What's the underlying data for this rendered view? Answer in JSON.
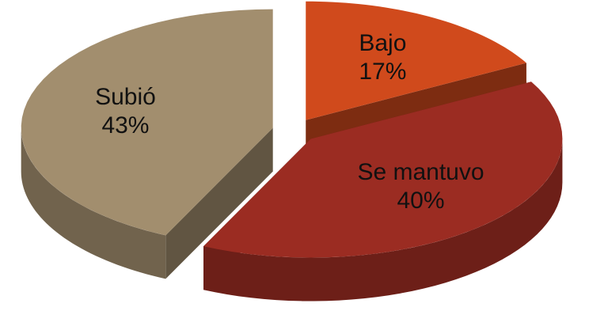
{
  "chart_data": {
    "type": "pie",
    "categories": [
      "Bajo",
      "Se mantuvo",
      "Subió"
    ],
    "values": [
      17,
      40,
      43
    ],
    "value_labels": [
      "17%",
      "40%",
      "43%"
    ],
    "colors": [
      "#d04a1c",
      "#9b2c22",
      "#a28e6e"
    ]
  }
}
